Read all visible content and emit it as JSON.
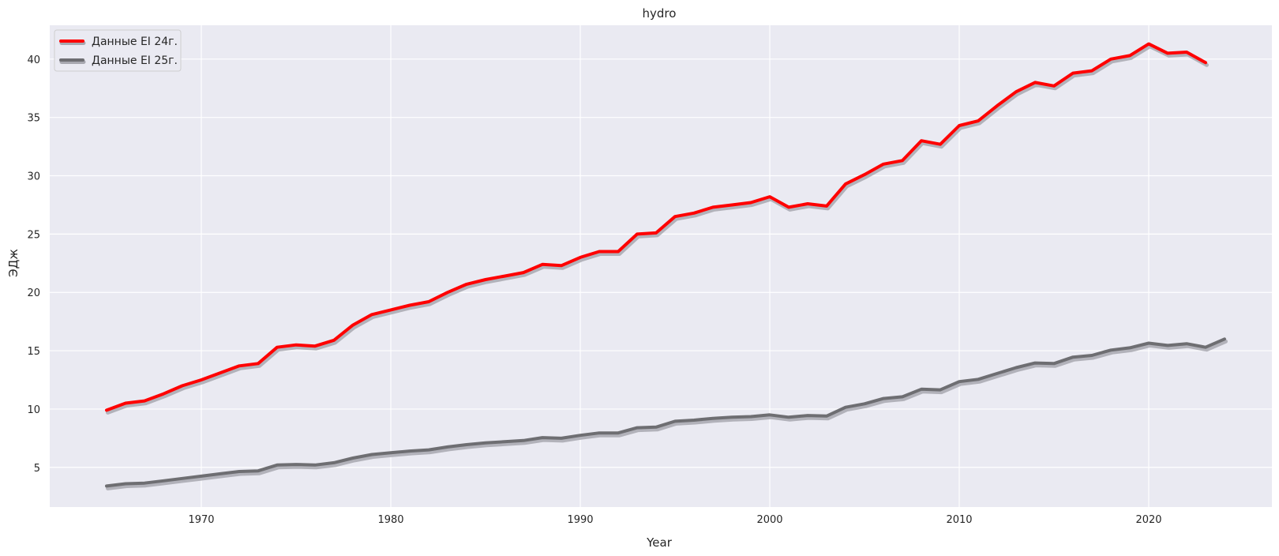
{
  "chart_data": {
    "type": "line",
    "title": "hydro",
    "xlabel": "Year",
    "ylabel": "ЭДж",
    "xlim": [
      1962,
      2026.5
    ],
    "ylim": [
      1.6,
      42.9
    ],
    "xticks": [
      1970,
      1980,
      1990,
      2000,
      2010,
      2020
    ],
    "yticks": [
      5,
      10,
      15,
      20,
      25,
      30,
      35,
      40
    ],
    "grid": true,
    "legend_position": "top-left",
    "background_color": "#eaeaf2",
    "grid_color": "#ffffff",
    "series": [
      {
        "name": "Данные EI 24г.",
        "color": "#ff0000",
        "shadow_color": "#a8a8b0",
        "x": [
          1965,
          1966,
          1967,
          1968,
          1969,
          1970,
          1971,
          1972,
          1973,
          1974,
          1975,
          1976,
          1977,
          1978,
          1979,
          1980,
          1981,
          1982,
          1983,
          1984,
          1985,
          1986,
          1987,
          1988,
          1989,
          1990,
          1991,
          1992,
          1993,
          1994,
          1995,
          1996,
          1997,
          1998,
          1999,
          2000,
          2001,
          2002,
          2003,
          2004,
          2005,
          2006,
          2007,
          2008,
          2009,
          2010,
          2011,
          2012,
          2013,
          2014,
          2015,
          2016,
          2017,
          2018,
          2019,
          2020,
          2021,
          2022,
          2023
        ],
        "values": [
          9.9,
          10.5,
          10.7,
          11.3,
          12.0,
          12.5,
          13.1,
          13.7,
          13.9,
          15.3,
          15.5,
          15.4,
          15.9,
          17.2,
          18.1,
          18.5,
          18.9,
          19.2,
          20.0,
          20.7,
          21.1,
          21.4,
          21.7,
          22.4,
          22.3,
          23.0,
          23.5,
          23.5,
          25.0,
          25.1,
          26.5,
          26.8,
          27.3,
          27.5,
          27.7,
          28.2,
          27.3,
          27.6,
          27.4,
          29.3,
          30.1,
          31.0,
          31.3,
          33.0,
          32.7,
          34.3,
          34.7,
          36.0,
          37.2,
          38.0,
          37.7,
          38.8,
          39.0,
          40.0,
          40.3,
          41.3,
          40.5,
          40.6,
          39.7
        ]
      },
      {
        "name": "Данные EI 25г.",
        "color": "#6e6e72",
        "shadow_color": "#a8a8b0",
        "x": [
          1965,
          1966,
          1967,
          1968,
          1969,
          1970,
          1971,
          1972,
          1973,
          1974,
          1975,
          1976,
          1977,
          1978,
          1979,
          1980,
          1981,
          1982,
          1983,
          1984,
          1985,
          1986,
          1987,
          1988,
          1989,
          1990,
          1991,
          1992,
          1993,
          1994,
          1995,
          1996,
          1997,
          1998,
          1999,
          2000,
          2001,
          2002,
          2003,
          2004,
          2005,
          2006,
          2007,
          2008,
          2009,
          2010,
          2011,
          2012,
          2013,
          2014,
          2015,
          2016,
          2017,
          2018,
          2019,
          2020,
          2021,
          2022,
          2023,
          2024
        ],
        "values": [
          3.4,
          3.6,
          3.65,
          3.85,
          4.05,
          4.25,
          4.45,
          4.65,
          4.7,
          5.2,
          5.25,
          5.2,
          5.4,
          5.8,
          6.1,
          6.25,
          6.4,
          6.5,
          6.75,
          6.95,
          7.1,
          7.2,
          7.3,
          7.55,
          7.5,
          7.75,
          7.95,
          7.95,
          8.4,
          8.45,
          8.95,
          9.05,
          9.2,
          9.3,
          9.35,
          9.5,
          9.3,
          9.45,
          9.4,
          10.15,
          10.45,
          10.9,
          11.05,
          11.7,
          11.65,
          12.35,
          12.55,
          13.05,
          13.55,
          13.95,
          13.9,
          14.45,
          14.6,
          15.05,
          15.25,
          15.65,
          15.45,
          15.6,
          15.3,
          16.0
        ]
      }
    ]
  }
}
